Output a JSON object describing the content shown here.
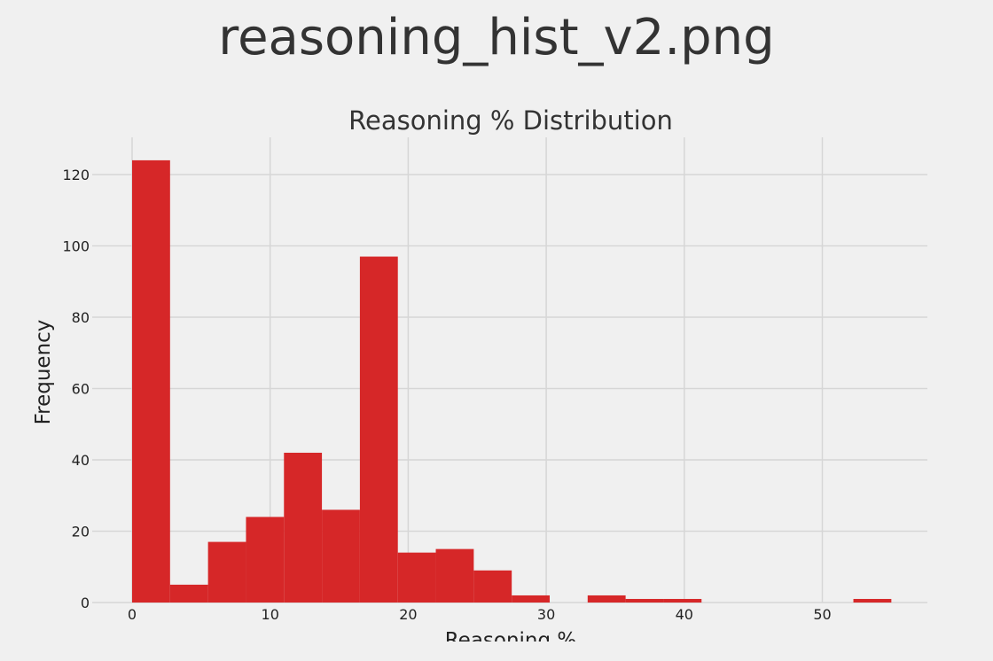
{
  "file_title": "reasoning_hist_v2.png",
  "chart_data": {
    "type": "bar",
    "title": "Reasoning % Distribution",
    "xlabel": "Reasoning %",
    "ylabel": "Frequency",
    "xlim": [
      0,
      57.6
    ],
    "ylim": [
      0,
      130
    ],
    "xticks": [
      0,
      10,
      20,
      30,
      40,
      50
    ],
    "yticks": [
      0,
      20,
      40,
      60,
      80,
      100,
      120
    ],
    "grid": true,
    "bar_color": "#d62728",
    "bins": [
      {
        "start": 0.0,
        "end": 2.75,
        "count": 124
      },
      {
        "start": 2.75,
        "end": 5.5,
        "count": 5
      },
      {
        "start": 5.5,
        "end": 8.25,
        "count": 17
      },
      {
        "start": 8.25,
        "end": 11.0,
        "count": 24
      },
      {
        "start": 11.0,
        "end": 13.75,
        "count": 42
      },
      {
        "start": 13.75,
        "end": 16.5,
        "count": 26
      },
      {
        "start": 16.5,
        "end": 19.25,
        "count": 97
      },
      {
        "start": 19.25,
        "end": 22.0,
        "count": 14
      },
      {
        "start": 22.0,
        "end": 24.75,
        "count": 15
      },
      {
        "start": 24.75,
        "end": 27.5,
        "count": 9
      },
      {
        "start": 27.5,
        "end": 30.25,
        "count": 2
      },
      {
        "start": 30.25,
        "end": 33.0,
        "count": 0
      },
      {
        "start": 33.0,
        "end": 35.75,
        "count": 2
      },
      {
        "start": 35.75,
        "end": 38.5,
        "count": 1
      },
      {
        "start": 38.5,
        "end": 41.25,
        "count": 1
      },
      {
        "start": 41.25,
        "end": 44.0,
        "count": 0
      },
      {
        "start": 44.0,
        "end": 46.75,
        "count": 0
      },
      {
        "start": 46.75,
        "end": 49.5,
        "count": 0
      },
      {
        "start": 49.5,
        "end": 52.25,
        "count": 0
      },
      {
        "start": 52.25,
        "end": 55.0,
        "count": 1
      }
    ]
  }
}
